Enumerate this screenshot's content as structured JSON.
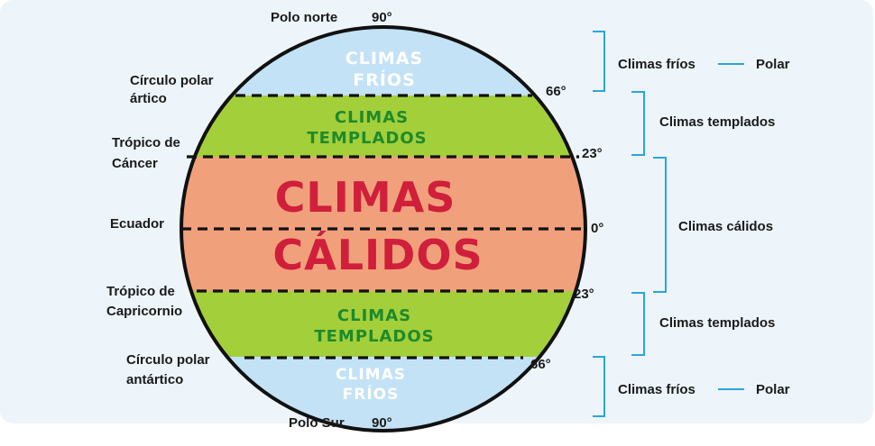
{
  "labels": {
    "polo_norte": "Polo norte",
    "polo_sur": "Polo Sur",
    "circulo_artico": [
      "Círculo polar",
      "ártico"
    ],
    "tropico_cancer": [
      "Trópico de",
      "Cáncer"
    ],
    "ecuador": "Ecuador",
    "tropico_capricornio": [
      "Trópico de",
      "Capricornio"
    ],
    "circulo_antartico": [
      "Círculo polar",
      "antártico"
    ]
  },
  "degrees": {
    "norte": "90°",
    "artico": "66°",
    "cancer": "23°",
    "ecuador": "0°",
    "capricornio": "23°",
    "antartico": "66°",
    "sur": "90°"
  },
  "zones": {
    "frios_top": [
      "CLIMAS",
      "FRÍOS"
    ],
    "templados_top": [
      "CLIMAS",
      "TEMPLADOS"
    ],
    "calidos": [
      "CLIMAS",
      "CÁLIDOS"
    ],
    "templados_bottom": [
      "CLIMAS",
      "TEMPLADOS"
    ],
    "frios_bottom": [
      "CLIMAS",
      "FRÍOS"
    ]
  },
  "legend": {
    "frios_top": "Climas fríos",
    "polar_top": "Polar",
    "templados_top": "Climas templados",
    "calidos": "Climas cálidos",
    "templados_bottom": "Climas templados",
    "frios_bottom": "Climas fríos",
    "polar_bottom": "Polar"
  },
  "colors": {
    "cold": "#c3e2f6",
    "temperate": "#a3cf3b",
    "warm": "#f1a07c",
    "temperate_text": "#1e8a2a",
    "warm_text": "#cf1f3a",
    "bracket": "#2aa5dd",
    "outline": "#111111"
  }
}
